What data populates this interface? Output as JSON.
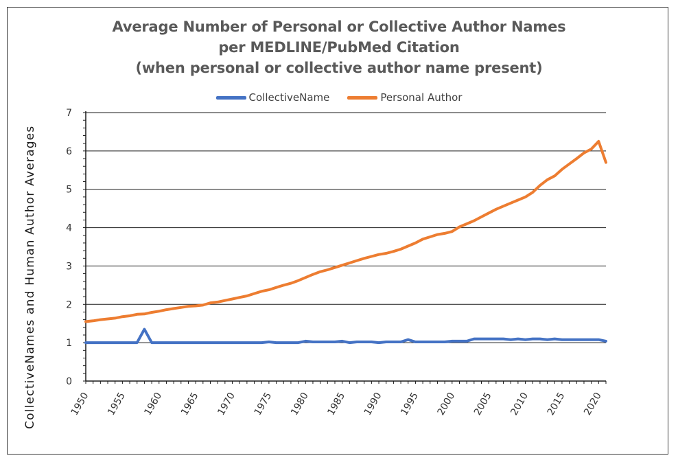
{
  "chart_data": {
    "type": "line",
    "title_lines": [
      "Average Number of Personal or Collective Author Names",
      "per MEDLINE/PubMed Citation",
      "(when personal or collective author name present)"
    ],
    "xlabel": "",
    "ylabel": "CollectiveNames  and  Human  Author  Averages",
    "ylim": [
      0,
      7
    ],
    "yticks": [
      "0",
      "1",
      "2",
      "3",
      "4",
      "5",
      "6",
      "7"
    ],
    "xlim": [
      1950,
      2021
    ],
    "xticks": [
      "1950",
      "1955",
      "1960",
      "1965",
      "1970",
      "1975",
      "1980",
      "1985",
      "1990",
      "1995",
      "2000",
      "2005",
      "2010",
      "2015",
      "2020"
    ],
    "grid": true,
    "legend_position": "top-center",
    "series": [
      {
        "name": "CollectiveName",
        "color": "#4472c4",
        "x": [
          1950,
          1951,
          1952,
          1953,
          1954,
          1955,
          1956,
          1957,
          1958,
          1959,
          1960,
          1961,
          1962,
          1963,
          1964,
          1965,
          1966,
          1967,
          1968,
          1969,
          1970,
          1971,
          1972,
          1973,
          1974,
          1975,
          1976,
          1977,
          1978,
          1979,
          1980,
          1981,
          1982,
          1983,
          1984,
          1985,
          1986,
          1987,
          1988,
          1989,
          1990,
          1991,
          1992,
          1993,
          1994,
          1995,
          1996,
          1997,
          1998,
          1999,
          2000,
          2001,
          2002,
          2003,
          2004,
          2005,
          2006,
          2007,
          2008,
          2009,
          2010,
          2011,
          2012,
          2013,
          2014,
          2015,
          2016,
          2017,
          2018,
          2019,
          2020,
          2021
        ],
        "values": [
          1.0,
          1.0,
          1.0,
          1.0,
          1.0,
          1.0,
          1.0,
          1.0,
          1.35,
          1.0,
          1.0,
          1.0,
          1.0,
          1.0,
          1.0,
          1.0,
          1.0,
          1.0,
          1.0,
          1.0,
          1.0,
          1.0,
          1.0,
          1.0,
          1.0,
          1.02,
          1.0,
          1.0,
          1.0,
          1.0,
          1.04,
          1.02,
          1.02,
          1.02,
          1.02,
          1.04,
          1.0,
          1.02,
          1.02,
          1.02,
          1.0,
          1.02,
          1.02,
          1.02,
          1.08,
          1.02,
          1.02,
          1.02,
          1.02,
          1.02,
          1.04,
          1.04,
          1.04,
          1.1,
          1.1,
          1.1,
          1.1,
          1.1,
          1.08,
          1.1,
          1.08,
          1.1,
          1.1,
          1.08,
          1.1,
          1.08,
          1.08,
          1.08,
          1.08,
          1.08,
          1.08,
          1.04
        ]
      },
      {
        "name": "Personal Author",
        "color": "#ed7d31",
        "x": [
          1950,
          1951,
          1952,
          1953,
          1954,
          1955,
          1956,
          1957,
          1958,
          1959,
          1960,
          1961,
          1962,
          1963,
          1964,
          1965,
          1966,
          1967,
          1968,
          1969,
          1970,
          1971,
          1972,
          1973,
          1974,
          1975,
          1976,
          1977,
          1978,
          1979,
          1980,
          1981,
          1982,
          1983,
          1984,
          1985,
          1986,
          1987,
          1988,
          1989,
          1990,
          1991,
          1992,
          1993,
          1994,
          1995,
          1996,
          1997,
          1998,
          1999,
          2000,
          2001,
          2002,
          2003,
          2004,
          2005,
          2006,
          2007,
          2008,
          2009,
          2010,
          2011,
          2012,
          2013,
          2014,
          2015,
          2016,
          2017,
          2018,
          2019,
          2020,
          2021
        ],
        "values": [
          1.55,
          1.57,
          1.6,
          1.62,
          1.64,
          1.68,
          1.7,
          1.74,
          1.75,
          1.79,
          1.82,
          1.86,
          1.89,
          1.92,
          1.95,
          1.96,
          1.98,
          2.04,
          2.06,
          2.1,
          2.14,
          2.18,
          2.22,
          2.28,
          2.34,
          2.38,
          2.44,
          2.5,
          2.55,
          2.62,
          2.7,
          2.78,
          2.85,
          2.9,
          2.96,
          3.02,
          3.08,
          3.14,
          3.2,
          3.25,
          3.3,
          3.33,
          3.38,
          3.44,
          3.52,
          3.6,
          3.7,
          3.76,
          3.82,
          3.85,
          3.9,
          4.02,
          4.1,
          4.18,
          4.28,
          4.38,
          4.48,
          4.56,
          4.64,
          4.72,
          4.8,
          4.92,
          5.1,
          5.25,
          5.35,
          5.52,
          5.66,
          5.8,
          5.95,
          6.05,
          6.25,
          5.7
        ]
      }
    ]
  }
}
